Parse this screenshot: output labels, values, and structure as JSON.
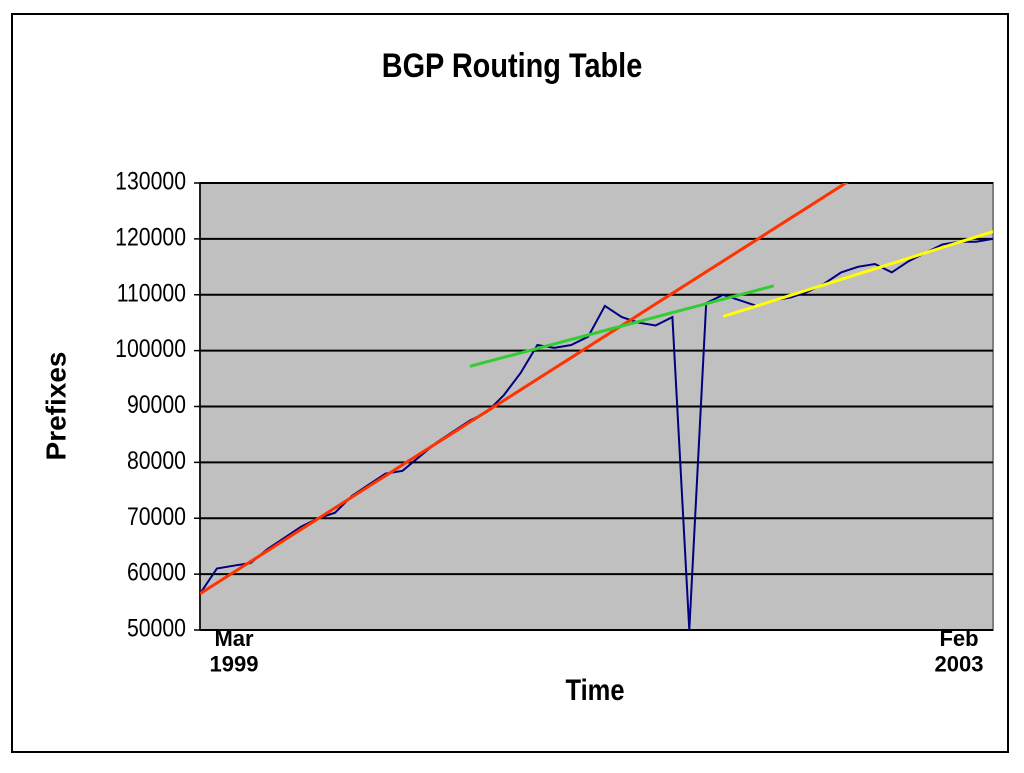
{
  "chart_data": {
    "type": "line",
    "title": "BGP Routing Table",
    "x_label": "Time",
    "y_label": "Prefixes",
    "categories": [
      "Mar 1999",
      null,
      null,
      null,
      null,
      null,
      null,
      null,
      null,
      null,
      null,
      null,
      null,
      null,
      null,
      null,
      null,
      null,
      null,
      null,
      null,
      null,
      null,
      null,
      null,
      null,
      null,
      null,
      null,
      null,
      null,
      null,
      null,
      null,
      null,
      null,
      null,
      null,
      null,
      null,
      null,
      null,
      null,
      null,
      null,
      null,
      null,
      "Feb 2003"
    ],
    "series": [
      {
        "color": "#000080",
        "values": [
          56500,
          61000,
          61500,
          62000,
          64500,
          66500,
          68500,
          70000,
          71000,
          74000,
          76000,
          78000,
          78500,
          81000,
          83500,
          85500,
          87500,
          89000,
          92000,
          96000,
          101000,
          100500,
          101000,
          102500,
          108000,
          106000,
          105000,
          104500,
          106000,
          50000,
          108500,
          110000,
          109000,
          108000,
          109000,
          109500,
          110500,
          112000,
          114000,
          115000,
          115500,
          114000,
          116000,
          117500,
          119000,
          119500,
          119500,
          120000
        ]
      },
      {
        "color": "#ff3300",
        "values": [
          56500,
          58420,
          60340,
          62260,
          64180,
          66100,
          68020,
          69940,
          71860,
          73780,
          75700,
          77620,
          79540,
          81460,
          83380,
          85300,
          87220,
          89140,
          91060,
          92980,
          94900,
          96820,
          98740,
          100660,
          102580,
          104500,
          106420,
          108340,
          110260,
          112180,
          114100,
          116020,
          117940,
          119860,
          121780,
          123700,
          125620,
          127540,
          129460,
          131380,
          null,
          null,
          null,
          null,
          null,
          null,
          null,
          null
        ]
      },
      {
        "color": "#33cc33",
        "values": [
          null,
          null,
          null,
          null,
          null,
          null,
          null,
          null,
          null,
          null,
          null,
          null,
          null,
          null,
          null,
          null,
          97200,
          98000,
          98800,
          99600,
          100400,
          101200,
          102000,
          102800,
          103600,
          104400,
          105200,
          106000,
          106800,
          107600,
          108400,
          109200,
          110000,
          110800,
          111600,
          null,
          null,
          null,
          null,
          null,
          null,
          null,
          null,
          null,
          null,
          null,
          null,
          null
        ]
      },
      {
        "color": "#ffff00",
        "values": [
          null,
          null,
          null,
          null,
          null,
          null,
          null,
          null,
          null,
          null,
          null,
          null,
          null,
          null,
          null,
          null,
          null,
          null,
          null,
          null,
          null,
          null,
          null,
          null,
          null,
          null,
          null,
          null,
          null,
          null,
          null,
          106100,
          107050,
          108000,
          108950,
          109900,
          110850,
          111800,
          112750,
          113700,
          114650,
          115600,
          116550,
          117500,
          118450,
          119400,
          120350,
          121300
        ]
      }
    ],
    "ylim": [
      50000,
      130000
    ],
    "yticks": [
      50000,
      60000,
      70000,
      80000,
      90000,
      100000,
      110000,
      120000,
      130000
    ],
    "grid": true,
    "plot_background": "#c0c0c0"
  }
}
